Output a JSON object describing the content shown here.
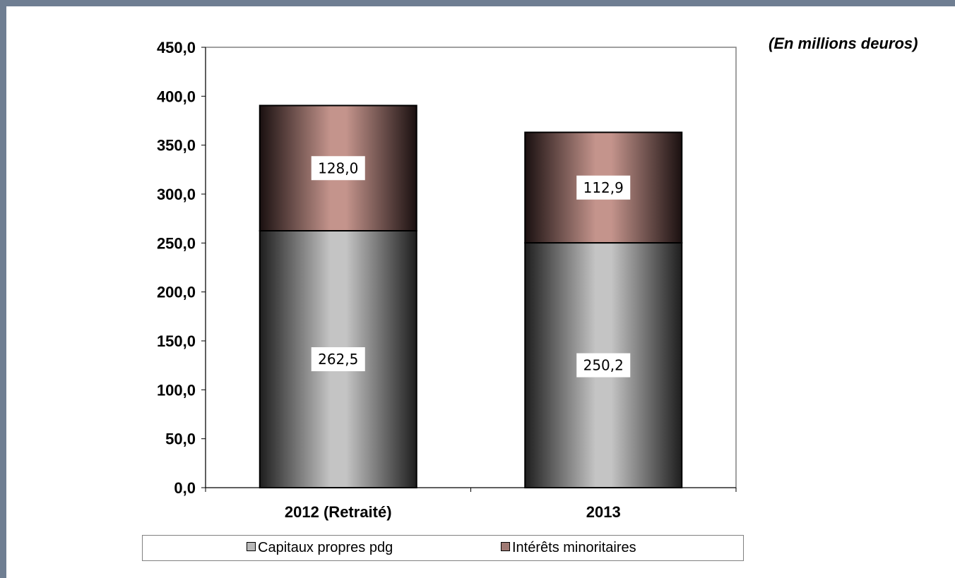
{
  "unit_label": "(En millions d\u0002euros)",
  "colors": {
    "frame": "#6f7e92",
    "series_capitaux": "#b8b8b8",
    "series_interets": "#c0948c"
  },
  "legend": {
    "items": [
      {
        "label": "Capitaux propres pdg",
        "swatch": "#b8b8b8"
      },
      {
        "label": "Intérêts minoritaires",
        "swatch": "#a07a74"
      }
    ]
  },
  "chart_data": {
    "type": "bar",
    "stacked": true,
    "categories": [
      "2012 (Retraité)",
      "2013"
    ],
    "series": [
      {
        "name": "Capitaux propres pdg",
        "values": [
          262.5,
          250.2
        ],
        "labels": [
          "262,5",
          "250,2"
        ]
      },
      {
        "name": "Intérêts minoritaires",
        "values": [
          128.0,
          112.9
        ],
        "labels": [
          "128,0",
          "112,9"
        ]
      }
    ],
    "ylim": [
      0,
      450
    ],
    "ytick_labels": [
      "0,0",
      "50,0",
      "100,0",
      "150,0",
      "200,0",
      "250,0",
      "300,0",
      "350,0",
      "400,0",
      "450,0"
    ],
    "ytick_values": [
      0,
      50,
      100,
      150,
      200,
      250,
      300,
      350,
      400,
      450
    ],
    "grid": false,
    "legend_position": "bottom"
  }
}
